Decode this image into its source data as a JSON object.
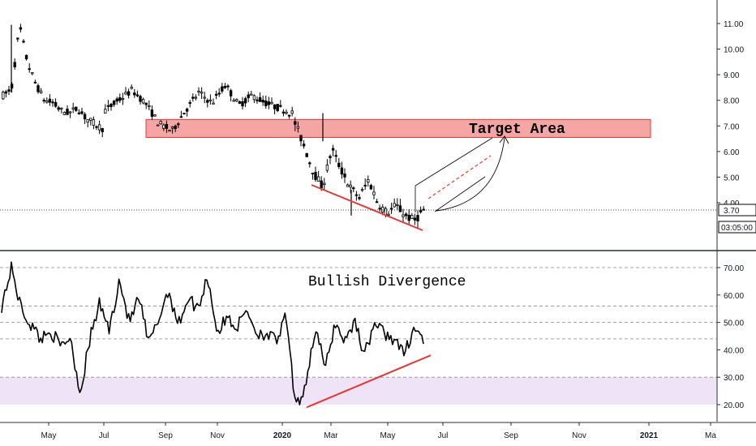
{
  "chart_data": [
    {
      "type": "candlestick",
      "panel": "price",
      "y_ticks": [
        "4.00",
        "5.00",
        "6.00",
        "7.00",
        "8.00",
        "9.00",
        "10.00",
        "11.00"
      ],
      "ylim": [
        3.0,
        11.6
      ],
      "current_price": "3.70",
      "countdown": "03:05:00",
      "annotation": "Target Area",
      "target_zone": [
        6.55,
        7.25
      ],
      "series": [
        {
          "from": "Apr 2019",
          "to": "Jul 2019",
          "approx_range": [
            6.6,
            10.9
          ],
          "values": [
            8.2,
            8.4,
            10.9,
            9.4,
            8.6,
            8.0,
            7.9,
            7.6,
            7.5,
            7.7,
            7.3,
            7.1,
            6.9
          ]
        },
        {
          "from": "Jul 2019",
          "to": "Feb 2020",
          "approx_range": [
            6.8,
            8.7
          ],
          "values": [
            7.6,
            8.0,
            8.4,
            7.9,
            7.1,
            6.8,
            7.6,
            8.3,
            7.9,
            8.6,
            7.8,
            8.2,
            7.9,
            7.7,
            7.5
          ]
        },
        {
          "from": "Feb 2020",
          "to": "Jun 2020",
          "approx_range": [
            3.3,
            7.5
          ],
          "values": [
            7.1,
            6.2,
            5.2,
            4.6,
            6.1,
            5.3,
            4.6,
            4.2,
            4.9,
            4.0,
            3.6,
            3.9,
            3.5,
            3.3,
            3.7
          ]
        }
      ],
      "trendline_label": "lower lows",
      "projection": "rising toward target area"
    },
    {
      "type": "line",
      "panel": "oscillator",
      "y_ticks": [
        "20.00",
        "30.00",
        "40.00",
        "50.00",
        "60.00",
        "70.00"
      ],
      "ylim": [
        14,
        76
      ],
      "levels": [
        30,
        44,
        50,
        56,
        70
      ],
      "shaded_band": [
        20,
        30
      ],
      "annotation": "Bullish Divergence",
      "values": [
        56,
        70,
        55,
        49,
        44,
        47,
        41,
        45,
        24,
        44,
        57,
        47,
        66,
        50,
        59,
        42,
        51,
        62,
        49,
        59,
        55,
        67,
        46,
        52,
        48,
        55,
        46,
        46,
        43,
        52,
        18,
        28,
        48,
        33,
        50,
        43,
        51,
        38,
        50,
        46,
        44,
        38,
        48,
        44
      ],
      "divergence_line": [
        19,
        38
      ]
    }
  ],
  "x_axis": {
    "labels": [
      "May",
      "Jul",
      "Sep",
      "Nov",
      "2020",
      "Mar",
      "May",
      "Jul",
      "Sep",
      "Nov",
      "2021",
      "Ma"
    ],
    "bold": [
      "2020",
      "2021"
    ]
  },
  "colors": {
    "up_candle": "#ffffff",
    "down_candle": "#000000",
    "target_fill": "#f6a5a5",
    "target_border": "#e53935",
    "trendline": "#e53935",
    "oscillator_band": "#efe4f7",
    "price_line": "#000000"
  }
}
